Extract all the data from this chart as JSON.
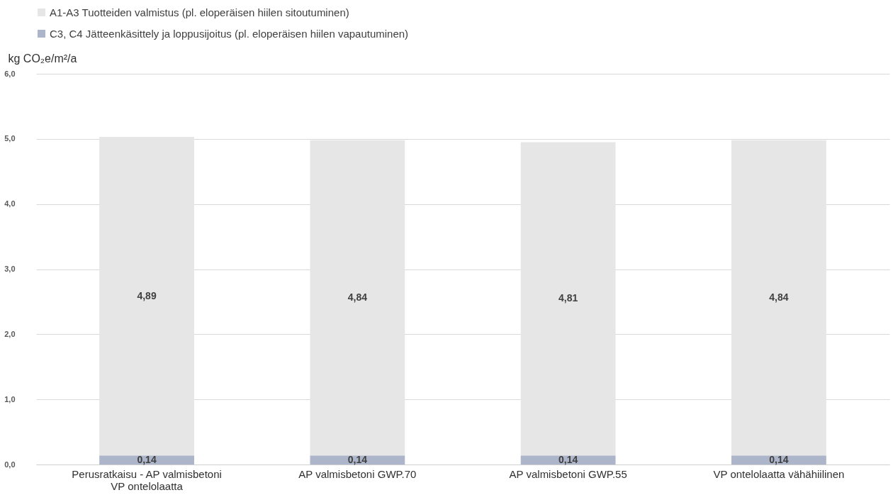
{
  "chart_data": {
    "type": "bar",
    "stacked": true,
    "ylabel": "kg CO₂e/m²/a",
    "categories": [
      "Perusratkaisu - AP valmisbetoni VP ontelolaatta",
      "AP valmisbetoni GWP.70",
      "AP valmisbetoni GWP.55",
      "VP ontelolaatta vähähiilinen"
    ],
    "series": [
      {
        "name": "C3, C4 Jätteenkäsittely ja loppusijoitus (pl. eloperäisen hiilen vapautuminen)",
        "color": "#acb5c9",
        "values": [
          0.14,
          0.14,
          0.14,
          0.14
        ],
        "value_labels": [
          "0,14",
          "0,14",
          "0,14",
          "0,14"
        ]
      },
      {
        "name": "A1-A3 Tuotteiden valmistus (pl. eloperäisen hiilen sitoutuminen)",
        "color": "#e6e6e6",
        "values": [
          4.89,
          4.84,
          4.81,
          4.84
        ],
        "value_labels": [
          "4,89",
          "4,84",
          "4,81",
          "4,84"
        ]
      }
    ],
    "ylim": [
      0,
      6
    ],
    "yticks": [
      {
        "value": 0,
        "label": "0,0"
      },
      {
        "value": 1,
        "label": "1,0"
      },
      {
        "value": 2,
        "label": "2,0"
      },
      {
        "value": 3,
        "label": "3,0"
      },
      {
        "value": 4,
        "label": "4,0"
      },
      {
        "value": 5,
        "label": "5,0"
      },
      {
        "value": 6,
        "label": "6,0"
      }
    ],
    "grid": "y",
    "legend": "top"
  }
}
